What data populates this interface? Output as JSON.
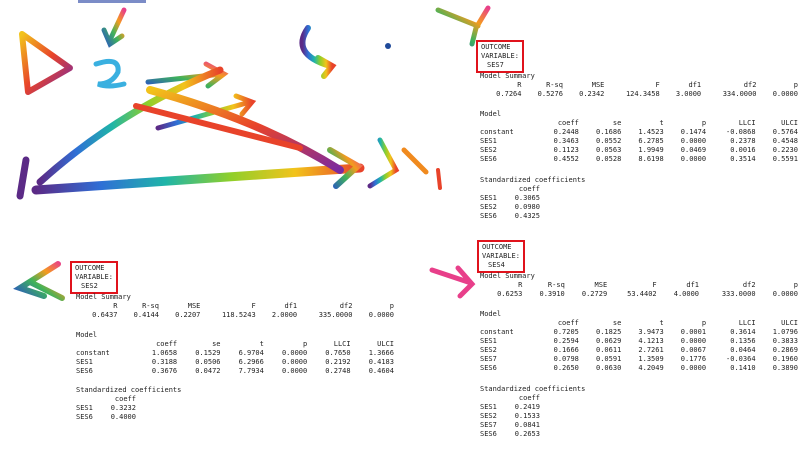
{
  "colors": {
    "outcome_border": "#e0131c",
    "text": "#222222",
    "background": "#ffffff"
  },
  "panels": [
    {
      "outcome_label": "OUTCOME VARIABLE:",
      "outcome_var": "SES7",
      "summary_title": "Model Summary",
      "summary_headers": [
        "R",
        "R-sq",
        "MSE",
        "F",
        "df1",
        "df2",
        "p"
      ],
      "summary_values": [
        "0.7264",
        "0.5276",
        "0.2342",
        "124.3458",
        "3.0000",
        "334.0000",
        "0.0000"
      ],
      "model_title": "Model",
      "model_headers": [
        "",
        "coeff",
        "se",
        "t",
        "p",
        "LLCI",
        "ULCI"
      ],
      "model_rows": [
        [
          "constant",
          "0.2448",
          "0.1686",
          "1.4523",
          "0.1474",
          "-0.0868",
          "0.5764"
        ],
        [
          "SES1",
          "0.3463",
          "0.0552",
          "6.2785",
          "0.0000",
          "0.2378",
          "0.4548"
        ],
        [
          "SES2",
          "0.1123",
          "0.0563",
          "1.9949",
          "0.0469",
          "0.0016",
          "0.2230"
        ],
        [
          "SES6",
          "0.4552",
          "0.0528",
          "8.6198",
          "0.0000",
          "0.3514",
          "0.5591"
        ]
      ],
      "std_title": "Standardized coefficients",
      "std_header": "coeff",
      "std_rows": [
        [
          "SES1",
          "0.3065"
        ],
        [
          "SES2",
          "0.0980"
        ],
        [
          "SES6",
          "0.4325"
        ]
      ]
    },
    {
      "outcome_label": "OUTCOME VARIABLE:",
      "outcome_var": "SES2",
      "summary_title": "Model Summary",
      "summary_headers": [
        "R",
        "R-sq",
        "MSE",
        "F",
        "df1",
        "df2",
        "p"
      ],
      "summary_values": [
        "0.6437",
        "0.4144",
        "0.2207",
        "118.5243",
        "2.0000",
        "335.0000",
        "0.0000"
      ],
      "model_title": "Model",
      "model_headers": [
        "",
        "coeff",
        "se",
        "t",
        "p",
        "LLCI",
        "ULCI"
      ],
      "model_rows": [
        [
          "constant",
          "1.0658",
          "0.1529",
          "6.9704",
          "0.0000",
          "0.7650",
          "1.3666"
        ],
        [
          "SES1",
          "0.3188",
          "0.0506",
          "6.2966",
          "0.0000",
          "0.2192",
          "0.4183"
        ],
        [
          "SES6",
          "0.3676",
          "0.0472",
          "7.7934",
          "0.0000",
          "0.2748",
          "0.4604"
        ]
      ],
      "std_title": "Standardized coefficients",
      "std_header": "coeff",
      "std_rows": [
        [
          "SES1",
          "0.3232"
        ],
        [
          "SES6",
          "0.4000"
        ]
      ]
    },
    {
      "outcome_label": "OUTCOME VARIABLE:",
      "outcome_var": "SES4",
      "summary_title": "Model Summary",
      "summary_headers": [
        "R",
        "R-sq",
        "MSE",
        "F",
        "df1",
        "df2",
        "p"
      ],
      "summary_values": [
        "0.6253",
        "0.3910",
        "0.2729",
        "53.4402",
        "4.0000",
        "333.0000",
        "0.0000"
      ],
      "model_title": "Model",
      "model_headers": [
        "",
        "coeff",
        "se",
        "t",
        "p",
        "LLCI",
        "ULCI"
      ],
      "model_rows": [
        [
          "constant",
          "0.7205",
          "0.1825",
          "3.9473",
          "0.0001",
          "0.3614",
          "1.0796"
        ],
        [
          "SES1",
          "0.2594",
          "0.0629",
          "4.1213",
          "0.0000",
          "0.1356",
          "0.3833"
        ],
        [
          "SES2",
          "0.1666",
          "0.0611",
          "2.7261",
          "0.0067",
          "0.0464",
          "0.2869"
        ],
        [
          "SES7",
          "0.0798",
          "0.0591",
          "1.3509",
          "0.1776",
          "-0.0364",
          "0.1960"
        ],
        [
          "SES6",
          "0.2650",
          "0.0630",
          "4.2049",
          "0.0000",
          "0.1410",
          "0.3890"
        ]
      ],
      "std_title": "Standardized coefficients",
      "std_header": "coeff",
      "std_rows": [
        [
          "SES1",
          "0.2419"
        ],
        [
          "SES2",
          "0.1533"
        ],
        [
          "SES7",
          "0.0841"
        ],
        [
          "SES6",
          "0.2653"
        ]
      ]
    }
  ]
}
